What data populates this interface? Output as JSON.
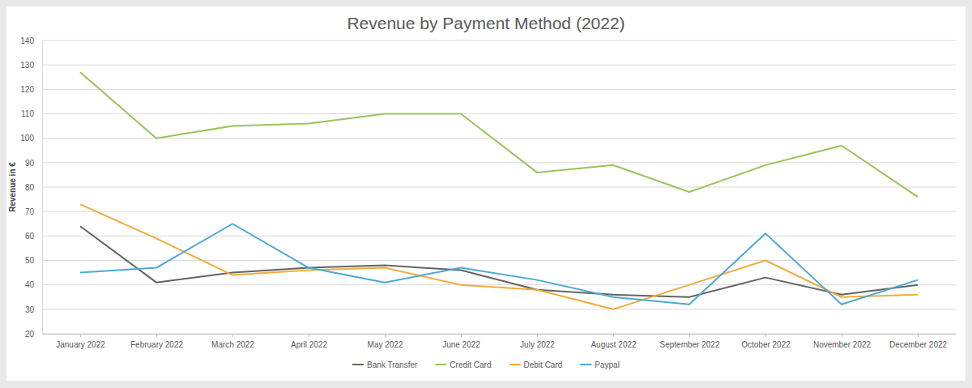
{
  "chart_data": {
    "type": "line",
    "title": "Revenue by Payment Method (2022)",
    "y_label": "Revenue in €",
    "categories": [
      "January 2022",
      "February 2022",
      "March 2022",
      "April 2022",
      "May 2022",
      "June 2022",
      "July 2022",
      "August 2022",
      "September 2022",
      "October 2022",
      "November 2022",
      "December 2022"
    ],
    "series": [
      {
        "name": "Bank Transfer",
        "color": "#636363",
        "values": [
          64,
          41,
          45,
          47,
          48,
          46,
          38,
          36,
          35,
          43,
          36,
          40
        ]
      },
      {
        "name": "Credit Card",
        "color": "#9bc35a",
        "values": [
          127,
          100,
          105,
          106,
          110,
          110,
          86,
          89,
          78,
          89,
          97,
          76
        ]
      },
      {
        "name": "Debit Card",
        "color": "#f2ab3c",
        "values": [
          73,
          59,
          44,
          46,
          47,
          40,
          38,
          30,
          40,
          50,
          35,
          36
        ]
      },
      {
        "name": "Paypal",
        "color": "#4aa9d6",
        "values": [
          45,
          47,
          65,
          47,
          41,
          47,
          42,
          35,
          32,
          61,
          32,
          42
        ]
      }
    ],
    "ylim": [
      20,
      140
    ],
    "yticks": [
      20,
      30,
      40,
      50,
      60,
      70,
      80,
      90,
      100,
      110,
      120,
      130,
      140
    ],
    "grid": true,
    "legend": "bottom"
  }
}
